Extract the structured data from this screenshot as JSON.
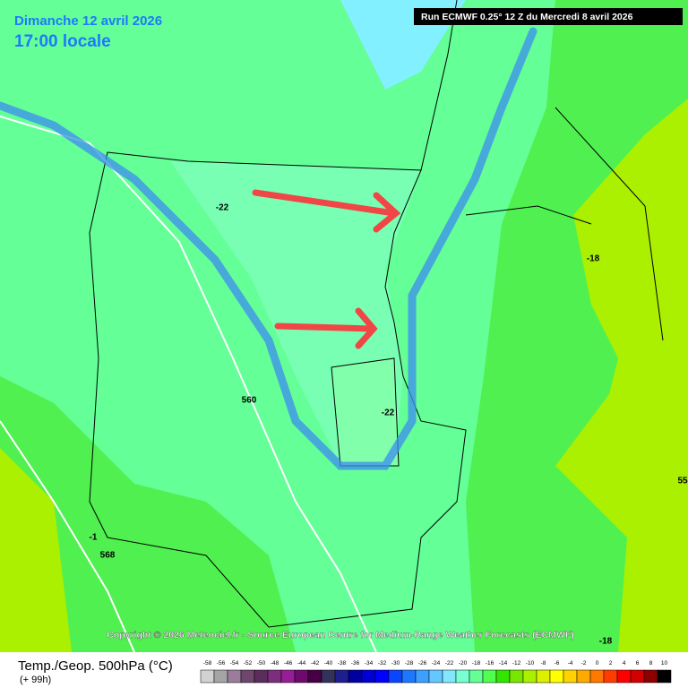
{
  "header": {
    "date": "Dimanche 12 avril 2026",
    "time": "17:00 locale",
    "run": "Run ECMWF 0.25° 12 Z du Mercredi 8 avril 2026"
  },
  "contour_labels": [
    "-22",
    "-22",
    "-18",
    "-18",
    "560",
    "568",
    "55",
    "-1"
  ],
  "copyright": "Copyright © 2026 Meteociel.fr - Source European Centre for Medium-Range Weather Forecasts (ECMWF)",
  "footer": {
    "title": "Temp./Geop. 500hPa (°C)",
    "lead": "(+ 99h)"
  },
  "scale": {
    "labels": [
      -58,
      -56,
      -54,
      -52,
      -50,
      -48,
      -46,
      -44,
      -42,
      -40,
      -38,
      -36,
      -34,
      -32,
      -30,
      -28,
      -26,
      -24,
      -22,
      -20,
      -18,
      -16,
      -14,
      -12,
      -10,
      -8,
      -6,
      -4,
      -2,
      0,
      2,
      4,
      6,
      8,
      10
    ],
    "colors": [
      "#d2d2d2",
      "#a5a5a5",
      "#9b7d9b",
      "#6e466e",
      "#5a2d5a",
      "#7d2d7d",
      "#961e96",
      "#6e0a6e",
      "#460046",
      "#32325a",
      "#1e1e8c",
      "#0000a0",
      "#0000d2",
      "#0000ff",
      "#0a46ff",
      "#1e78ff",
      "#3ca0ff",
      "#64c8ff",
      "#82e6ff",
      "#78ffd2",
      "#64ff96",
      "#50ff50",
      "#32e600",
      "#78e600",
      "#aaf000",
      "#dcf000",
      "#ffff00",
      "#ffd200",
      "#ffaa00",
      "#ff7800",
      "#ff3c00",
      "#ff0000",
      "#d20000",
      "#8c0000",
      "#000000"
    ]
  }
}
